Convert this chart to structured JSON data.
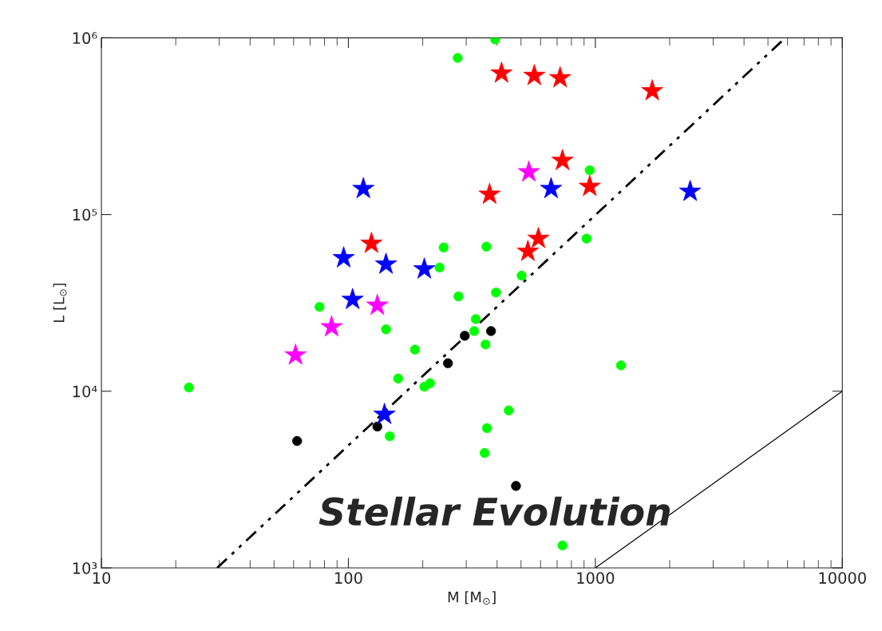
{
  "chart_data": {
    "type": "scatter",
    "xlabel": "M [M$_{⊙}$]",
    "ylabel": "L [L$_{⊙}$]",
    "log": "xy",
    "grid": false,
    "legend": false,
    "xlim": [
      10,
      10000
    ],
    "xticks": [
      10,
      100,
      1000,
      10000
    ],
    "ylim": [
      1000,
      1000000
    ],
    "yticks": [
      {
        "value": 1000,
        "label": "10³"
      },
      {
        "value": 10000,
        "label": "10⁴"
      },
      {
        "value": 100000,
        "label": "10⁵"
      },
      {
        "value": 1000000,
        "label": "10⁶"
      }
    ],
    "annotations": [
      "Stellar Evolution"
    ],
    "series": [
      {
        "type": "line",
        "line_style": "dashdot",
        "marker": "none",
        "color": "#000000",
        "x": [
          29.4,
          5880
        ],
        "values": [
          1000,
          1000000
        ]
      },
      {
        "type": "line",
        "line_style": "solid",
        "marker": "none",
        "color": "#000000",
        "x": [
          1000,
          10000
        ],
        "values": [
          1000,
          10000
        ]
      },
      {
        "marker": "circle",
        "color": "#00ff00",
        "x": [
          22.6,
          76.4,
          142,
          186,
          159,
          203,
          214,
          147,
          234,
          243,
          393,
          277,
          949,
          921,
          362,
          503,
          279,
          396,
          328,
          323,
          359,
          1270,
          446,
          364,
          356,
          736
        ],
        "values": [
          10500,
          30000,
          22400,
          17200,
          11800,
          10600,
          11100,
          5560,
          50100,
          65100,
          979000,
          770000,
          178000,
          73100,
          65800,
          45100,
          34400,
          36200,
          25600,
          21900,
          18400,
          14000,
          7780,
          6180,
          4470,
          1340
        ]
      },
      {
        "marker": "circle",
        "color": "#000000",
        "x": [
          62,
          131,
          253,
          296,
          378,
          477
        ],
        "values": [
          5230,
          6310,
          14400,
          20600,
          21900,
          2910
        ]
      },
      {
        "marker": "star",
        "color": "#ff0000",
        "x": [
          417,
          566,
          720,
          1700,
          736,
          949,
          373,
          588,
          533,
          124
        ],
        "values": [
          631000,
          611000,
          593000,
          501000,
          202000,
          144000,
          130000,
          73100,
          61800,
          68600
        ]
      },
      {
        "marker": "star",
        "color": "#ff00ff",
        "x": [
          538,
          131,
          85.5,
          61.1
        ],
        "values": [
          174000,
          30600,
          23100,
          16000
        ]
      },
      {
        "marker": "star",
        "color": "#0000ff",
        "x": [
          115,
          95.7,
          142,
          203,
          104,
          662,
          2420,
          140
        ],
        "values": [
          140000,
          56800,
          52300,
          49100,
          33000,
          140000,
          135000,
          7380
        ]
      }
    ]
  }
}
